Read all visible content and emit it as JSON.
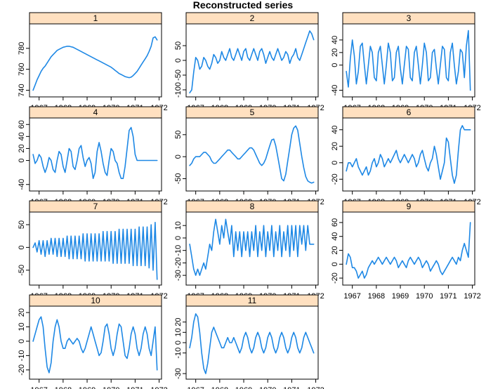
{
  "title": "Reconstructed series",
  "colors": {
    "line": "#1e88e5",
    "strip": "#ffe0c0"
  },
  "chart_data": {
    "type": "line",
    "title": "Reconstructed series",
    "layout": "lattice 4x3 panels",
    "x_ticks": [
      1967,
      1968,
      1969,
      1970,
      1971,
      1972
    ],
    "x": [
      1966.75,
      1966.833,
      1966.917,
      1967.0,
      1967.083,
      1967.167,
      1967.25,
      1967.333,
      1967.417,
      1967.5,
      1967.583,
      1967.667,
      1967.75,
      1967.833,
      1967.917,
      1968.0,
      1968.083,
      1968.167,
      1968.25,
      1968.333,
      1968.417,
      1968.5,
      1968.583,
      1968.667,
      1968.75,
      1968.833,
      1968.917,
      1969.0,
      1969.083,
      1969.167,
      1969.25,
      1969.333,
      1969.417,
      1969.5,
      1969.583,
      1969.667,
      1969.75,
      1969.833,
      1969.917,
      1970.0,
      1970.083,
      1970.167,
      1970.25,
      1970.333,
      1970.417,
      1970.5,
      1970.583,
      1970.667,
      1970.75,
      1970.833,
      1970.917,
      1971.0,
      1971.083,
      1971.167,
      1971.25,
      1971.333,
      1971.417,
      1971.5,
      1971.583,
      1971.667,
      1971.75,
      1971.833,
      1971.917
    ],
    "panels": [
      {
        "name": "1",
        "y_ticks": [
          740,
          760,
          780
        ],
        "ylim": [
          737,
          800
        ],
        "values": [
          740,
          745,
          750,
          754,
          758,
          761,
          763,
          766,
          769,
          772,
          774,
          776,
          778,
          779,
          780,
          781,
          781.5,
          782,
          782,
          781.5,
          781,
          780,
          779,
          778,
          777,
          776,
          775,
          774,
          773,
          772,
          771,
          770,
          769,
          768,
          767,
          766,
          765,
          764,
          763,
          762,
          760.5,
          759,
          757.5,
          756,
          755,
          754,
          753,
          752.5,
          752,
          752.5,
          754,
          756,
          758,
          761,
          764,
          767,
          770,
          773,
          777,
          782,
          790,
          791,
          788
        ]
      },
      {
        "name": "2",
        "y_ticks": [
          -100,
          -50,
          0,
          50
        ],
        "ylim": [
          -112,
          112
        ],
        "values": [
          -110,
          -100,
          -40,
          10,
          0,
          -30,
          -20,
          10,
          0,
          -20,
          -30,
          -10,
          20,
          10,
          -10,
          0,
          30,
          10,
          0,
          20,
          40,
          10,
          0,
          20,
          40,
          20,
          0,
          30,
          40,
          10,
          0,
          20,
          40,
          20,
          0,
          30,
          40,
          20,
          -10,
          10,
          30,
          10,
          0,
          20,
          40,
          20,
          0,
          10,
          30,
          20,
          -10,
          10,
          20,
          40,
          10,
          0,
          20,
          40,
          60,
          80,
          100,
          90,
          70
        ]
      },
      {
        "name": "3",
        "y_ticks": [
          -40,
          0,
          20,
          40
        ],
        "ylim": [
          -45,
          60
        ],
        "values": [
          -10,
          -35,
          10,
          40,
          15,
          -30,
          -10,
          30,
          35,
          0,
          -30,
          0,
          30,
          20,
          -20,
          -25,
          20,
          30,
          0,
          -30,
          0,
          35,
          20,
          -25,
          -20,
          20,
          30,
          -5,
          -30,
          0,
          30,
          25,
          -20,
          -25,
          20,
          30,
          0,
          -30,
          0,
          35,
          20,
          -25,
          -20,
          20,
          25,
          -5,
          -30,
          0,
          30,
          25,
          -20,
          -25,
          20,
          35,
          0,
          -30,
          -10,
          25,
          20,
          -20,
          30,
          55,
          -40
        ]
      },
      {
        "name": "4",
        "y_ticks": [
          -40,
          0,
          20,
          40,
          60
        ],
        "ylim": [
          -45,
          65
        ],
        "values": [
          10,
          -5,
          0,
          10,
          5,
          -10,
          -20,
          -10,
          5,
          0,
          -15,
          -20,
          0,
          15,
          10,
          -10,
          -20,
          0,
          20,
          15,
          -10,
          -15,
          0,
          20,
          25,
          5,
          -10,
          0,
          5,
          -5,
          -30,
          -20,
          15,
          30,
          15,
          -5,
          -20,
          -25,
          0,
          20,
          15,
          0,
          -5,
          -20,
          -30,
          -30,
          -10,
          20,
          50,
          55,
          40,
          10,
          0,
          0,
          0,
          0,
          0,
          0,
          0,
          0,
          0,
          0,
          0
        ]
      },
      {
        "name": "5",
        "y_ticks": [
          -50,
          0,
          50
        ],
        "ylim": [
          -70,
          80
        ],
        "values": [
          -20,
          -15,
          -5,
          0,
          0,
          0,
          5,
          10,
          10,
          5,
          0,
          -10,
          -15,
          -15,
          -10,
          -5,
          0,
          5,
          10,
          15,
          15,
          10,
          5,
          0,
          -5,
          -5,
          0,
          5,
          10,
          15,
          20,
          20,
          15,
          5,
          -5,
          -15,
          -20,
          -15,
          -5,
          10,
          25,
          38,
          40,
          25,
          0,
          -25,
          -50,
          -55,
          -40,
          -10,
          20,
          50,
          65,
          70,
          60,
          30,
          0,
          -25,
          -45,
          -55,
          -58,
          -60,
          -58
        ]
      },
      {
        "name": "6",
        "y_ticks": [
          -20,
          0,
          20,
          40
        ],
        "ylim": [
          -30,
          50
        ],
        "values": [
          -10,
          0,
          0,
          -5,
          0,
          5,
          -5,
          -10,
          -15,
          -10,
          -5,
          -15,
          -10,
          0,
          5,
          -5,
          0,
          10,
          5,
          -5,
          0,
          5,
          0,
          5,
          10,
          15,
          5,
          0,
          5,
          10,
          5,
          0,
          5,
          10,
          5,
          -5,
          0,
          10,
          15,
          5,
          -5,
          -10,
          0,
          5,
          20,
          10,
          -5,
          -20,
          -10,
          0,
          30,
          25,
          5,
          -15,
          -25,
          -15,
          15,
          40,
          45,
          40,
          40,
          40,
          40
        ]
      },
      {
        "name": "7",
        "y_ticks": [
          -50,
          0,
          50
        ],
        "ylim": [
          -75,
          70
        ],
        "values": [
          0,
          10,
          -10,
          15,
          -15,
          15,
          -20,
          15,
          -15,
          20,
          -15,
          20,
          -20,
          20,
          -20,
          20,
          -20,
          25,
          -25,
          25,
          -25,
          25,
          -25,
          25,
          -25,
          30,
          -30,
          30,
          -30,
          30,
          -30,
          30,
          -30,
          30,
          -30,
          35,
          -30,
          35,
          -30,
          35,
          -35,
          35,
          -35,
          40,
          -35,
          40,
          -35,
          40,
          -35,
          40,
          -40,
          40,
          -40,
          45,
          -40,
          45,
          -40,
          45,
          -45,
          50,
          -50,
          55,
          -70
        ]
      },
      {
        "name": "8",
        "y_ticks": [
          -30,
          -20,
          -10,
          0,
          10
        ],
        "ylim": [
          -35,
          18
        ],
        "values": [
          -5,
          -15,
          -25,
          -30,
          -25,
          -30,
          -25,
          -20,
          -25,
          -15,
          -5,
          -10,
          5,
          15,
          5,
          -5,
          10,
          0,
          15,
          5,
          -5,
          10,
          -15,
          5,
          -10,
          5,
          -15,
          5,
          -10,
          5,
          -15,
          5,
          -10,
          10,
          -15,
          5,
          -10,
          10,
          -15,
          5,
          -10,
          10,
          -15,
          5,
          -10,
          10,
          -15,
          5,
          -10,
          10,
          -15,
          10,
          -10,
          10,
          -15,
          10,
          -5,
          10,
          -10,
          10,
          -5,
          -5,
          -5
        ]
      },
      {
        "name": "9",
        "y_ticks": [
          -20,
          0,
          20,
          40,
          60
        ],
        "ylim": [
          -25,
          70
        ],
        "values": [
          0,
          15,
          10,
          -5,
          -5,
          -10,
          -20,
          -15,
          -10,
          -20,
          -15,
          -5,
          0,
          5,
          0,
          5,
          10,
          5,
          0,
          5,
          10,
          5,
          0,
          5,
          10,
          5,
          -5,
          0,
          5,
          0,
          -5,
          5,
          10,
          5,
          0,
          5,
          10,
          5,
          -5,
          0,
          5,
          0,
          -10,
          -5,
          0,
          5,
          0,
          -10,
          -15,
          -10,
          -5,
          0,
          5,
          10,
          5,
          0,
          10,
          5,
          20,
          30,
          20,
          10,
          60
        ]
      },
      {
        "name": "10",
        "y_ticks": [
          -20,
          -10,
          0,
          10,
          20
        ],
        "ylim": [
          -24,
          22
        ],
        "values": [
          0,
          5,
          10,
          15,
          17,
          10,
          -5,
          -18,
          -22,
          -15,
          0,
          10,
          15,
          10,
          0,
          -5,
          -5,
          0,
          2,
          0,
          -2,
          0,
          2,
          0,
          -5,
          -8,
          -5,
          0,
          5,
          10,
          5,
          0,
          -5,
          -10,
          -8,
          0,
          10,
          12,
          5,
          -5,
          -10,
          -5,
          5,
          12,
          10,
          0,
          -10,
          -12,
          -5,
          5,
          10,
          5,
          -5,
          -10,
          -5,
          5,
          10,
          5,
          -5,
          -10,
          0,
          10,
          -20
        ]
      },
      {
        "name": "11",
        "y_ticks": [
          -30,
          -10,
          0,
          10,
          20
        ],
        "ylim": [
          -32,
          32
        ],
        "values": [
          -5,
          5,
          20,
          28,
          25,
          10,
          -10,
          -25,
          -30,
          -20,
          -5,
          10,
          15,
          10,
          5,
          0,
          -5,
          -5,
          0,
          5,
          0,
          0,
          5,
          0,
          -5,
          -10,
          -5,
          5,
          10,
          5,
          -5,
          -10,
          -5,
          5,
          10,
          5,
          -5,
          -10,
          -5,
          5,
          10,
          5,
          -5,
          -10,
          -5,
          5,
          10,
          5,
          -5,
          -10,
          -5,
          5,
          10,
          5,
          -5,
          -10,
          -5,
          5,
          10,
          5,
          0,
          -5,
          -10
        ]
      }
    ]
  }
}
